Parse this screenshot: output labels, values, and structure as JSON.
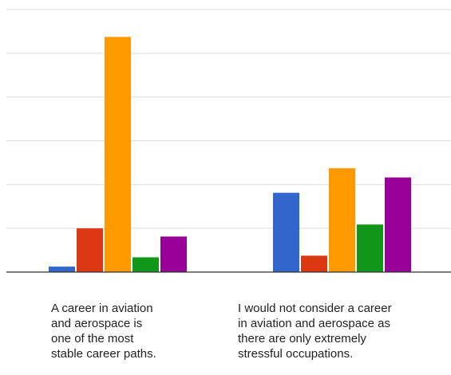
{
  "chart_data": {
    "type": "bar",
    "categories": [
      "A career in aviation\nand aerospace is\none of the most\nstable career paths.",
      "I would not consider a career\nin aviation and aerospace as\nthere are only extremely\nstressful occupations."
    ],
    "series": [
      {
        "color": "#3366cc",
        "values": [
          1,
          14.5
        ]
      },
      {
        "color": "#dc3912",
        "values": [
          8,
          3
        ]
      },
      {
        "color": "#ff9900",
        "values": [
          43,
          19
        ]
      },
      {
        "color": "#109618",
        "values": [
          2.7,
          8.7
        ]
      },
      {
        "color": "#990099",
        "values": [
          6.5,
          17.3
        ]
      }
    ],
    "ylim": [
      0,
      48
    ],
    "grid": true,
    "legend": "none",
    "title": "",
    "xlabel": "",
    "ylabel": ""
  }
}
